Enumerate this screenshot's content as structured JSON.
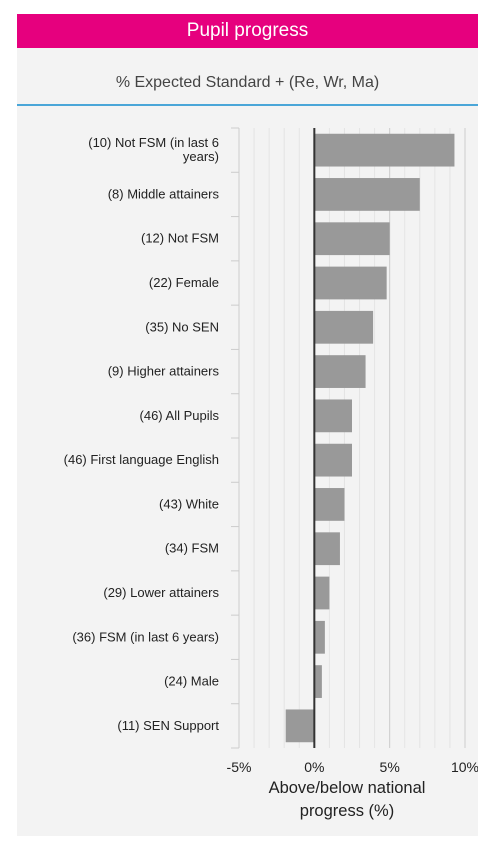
{
  "header": {
    "title": "Pupil progress"
  },
  "subtitle": "% Expected Standard + (Re, Wr, Ma)",
  "colors": {
    "header": "#e6007e",
    "divider": "#4aa6d8",
    "bar": "#999999",
    "panel": "#f3f3f3"
  },
  "chart_data": {
    "type": "bar",
    "orientation": "horizontal",
    "categories": [
      [
        "(10) Not FSM (in last 6",
        "years)"
      ],
      [
        "(8) Middle attainers"
      ],
      [
        "(12) Not FSM"
      ],
      [
        "(22) Female"
      ],
      [
        "(35) No SEN"
      ],
      [
        "(9) Higher attainers"
      ],
      [
        "(46) All Pupils"
      ],
      [
        "(46) First language English"
      ],
      [
        "(43) White"
      ],
      [
        "(34) FSM"
      ],
      [
        "(29) Lower attainers"
      ],
      [
        "(36) FSM (in last 6 years)"
      ],
      [
        "(24) Male"
      ],
      [
        "(11) SEN Support"
      ]
    ],
    "values": [
      9.3,
      7.0,
      5.0,
      4.8,
      3.9,
      3.4,
      2.5,
      2.5,
      2.0,
      1.7,
      1.0,
      0.7,
      0.5,
      -1.9
    ],
    "xlim": [
      -5,
      10
    ],
    "xticks": [
      -5,
      0,
      5,
      10
    ],
    "xtick_labels": [
      "-5%",
      "0%",
      "5%",
      "10%"
    ],
    "xlabel": "Above/below national progress (%)",
    "xlabel_lines": [
      "Above/below national",
      "progress (%)"
    ],
    "grid": true
  }
}
